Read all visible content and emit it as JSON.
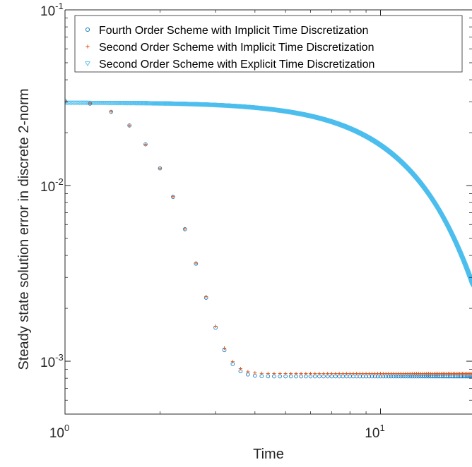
{
  "chart_data": {
    "type": "scatter",
    "title": "",
    "xlabel": "Time",
    "ylabel": "Steady state solution error in discrete 2-norm",
    "xscale": "log",
    "yscale": "log",
    "xlim": [
      1,
      19.5
    ],
    "ylim": [
      0.0005,
      0.1
    ],
    "grid": false,
    "legend_position": "top",
    "x_ticks": [
      {
        "value": 1,
        "base": "10",
        "exp": "0"
      },
      {
        "value": 10,
        "base": "10",
        "exp": "1"
      }
    ],
    "y_ticks": [
      {
        "value": 0.001,
        "base": "10",
        "exp": "-3"
      },
      {
        "value": 0.01,
        "base": "10",
        "exp": "-2"
      },
      {
        "value": 0.1,
        "base": "10",
        "exp": "-1"
      }
    ],
    "series": [
      {
        "name": "Fourth Order Scheme with Implicit Time Discretization",
        "marker": "circle",
        "color": "#0072BD",
        "dt": 0.2,
        "t_start": 1.0,
        "t_end": 19.6,
        "model": {
          "type": "decay",
          "e0": 0.0295,
          "rate": 1.68,
          "floor": 0.00082
        }
      },
      {
        "name": "Second Order Scheme with Implicit Time Discretization",
        "marker": "plus",
        "color": "#D95319",
        "dt": 0.2,
        "t_start": 1.0,
        "t_end": 19.6,
        "model": {
          "type": "decay",
          "e0": 0.0295,
          "rate": 1.68,
          "floor": 0.00085
        }
      },
      {
        "name": "Second Order Scheme with Explicit Time Discretization",
        "marker": "triangle-down",
        "color": "#4DBEEE",
        "dt": 0.01,
        "t_start": 1.0,
        "t_end": 19.6,
        "model": {
          "type": "gaussian",
          "e0": 0.0296,
          "sigma": 12.0,
          "t0": 1.0
        }
      }
    ]
  }
}
